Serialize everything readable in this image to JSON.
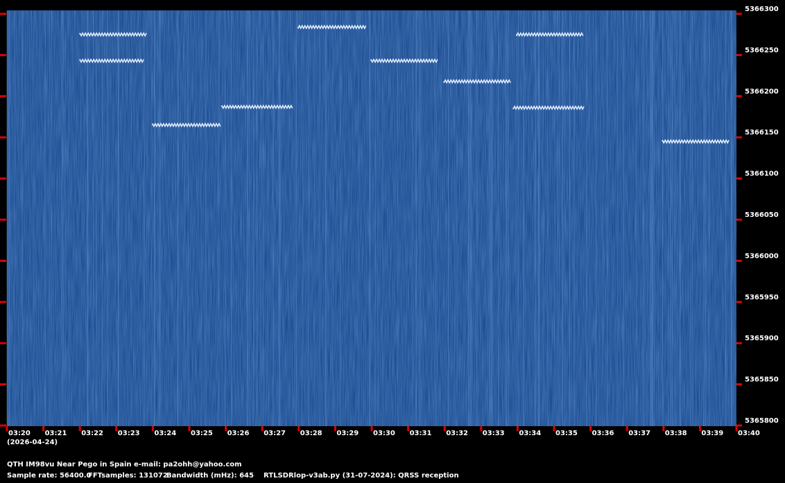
{
  "chart_data": {
    "type": "spectrogram",
    "date": "(2026-04-24)",
    "footer": [
      "QTH IM98vu Near Pego in Spain   e-mail: pa2ohh@yahoo.com",
      "Sample rate: 56400.0",
      "FFTsamples: 131072",
      "Bandwidth (mHz): 645",
      "RTLSDRlop-v3ab.py (31-07-2024): QRSS reception"
    ],
    "xlim": [
      200,
      220
    ],
    "xticks": [
      {
        "value": 200,
        "label": "03:20"
      },
      {
        "value": 201,
        "label": "03:21"
      },
      {
        "value": 202,
        "label": "03:22"
      },
      {
        "value": 203,
        "label": "03:23"
      },
      {
        "value": 204,
        "label": "03:24"
      },
      {
        "value": 205,
        "label": "03:25"
      },
      {
        "value": 206,
        "label": "03:26"
      },
      {
        "value": 207,
        "label": "03:27"
      },
      {
        "value": 208,
        "label": "03:28"
      },
      {
        "value": 209,
        "label": "03:29"
      },
      {
        "value": 210,
        "label": "03:30"
      },
      {
        "value": 211,
        "label": "03:31"
      },
      {
        "value": 212,
        "label": "03:32"
      },
      {
        "value": 213,
        "label": "03:33"
      },
      {
        "value": 214,
        "label": "03:34"
      },
      {
        "value": 215,
        "label": "03:35"
      },
      {
        "value": 216,
        "label": "03:36"
      },
      {
        "value": 217,
        "label": "03:37"
      },
      {
        "value": 218,
        "label": "03:38"
      },
      {
        "value": 219,
        "label": "03:39"
      },
      {
        "value": 220,
        "label": "03:40"
      }
    ],
    "ylim": [
      5365800,
      5366300
    ],
    "yticks": [
      5366300,
      5366250,
      5366200,
      5366150,
      5366100,
      5366050,
      5366000,
      5365950,
      5365900,
      5365850,
      5365800
    ],
    "signals": [
      {
        "start": 202.0,
        "end": 203.84,
        "frequency": 5366275
      },
      {
        "start": 202.0,
        "end": 203.75,
        "frequency": 5366243
      },
      {
        "start": 203.99,
        "end": 205.86,
        "frequency": 5366165
      },
      {
        "start": 205.89,
        "end": 207.83,
        "frequency": 5366187
      },
      {
        "start": 207.98,
        "end": 209.85,
        "frequency": 5366284
      },
      {
        "start": 209.98,
        "end": 211.82,
        "frequency": 5366243
      },
      {
        "start": 211.98,
        "end": 213.82,
        "frequency": 5366218
      },
      {
        "start": 213.97,
        "end": 215.82,
        "frequency": 5366275
      },
      {
        "start": 213.88,
        "end": 215.82,
        "frequency": 5366186
      },
      {
        "start": 217.97,
        "end": 219.81,
        "frequency": 5366145
      }
    ]
  }
}
